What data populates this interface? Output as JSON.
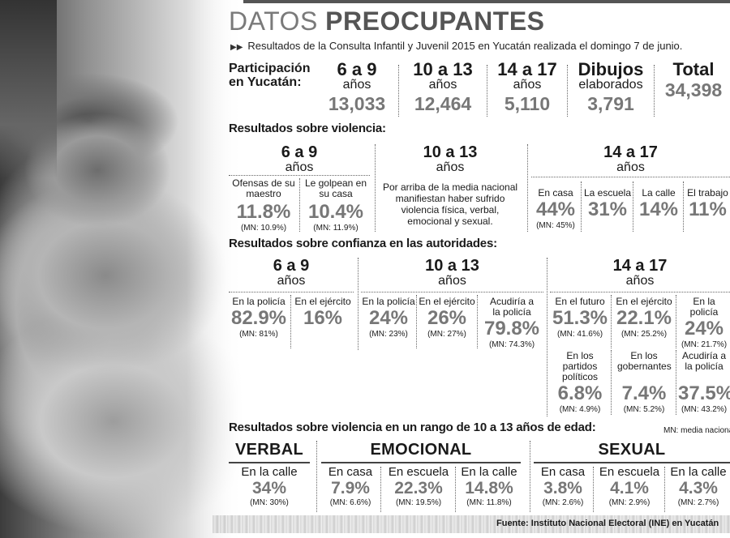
{
  "header": {
    "title_light": "DATOS",
    "title_bold": "PREOCUPANTES",
    "subtitle": "Resultados de la Consulta Infantil y Juvenil 2015 en Yucatán realizada el domingo 7 de junio."
  },
  "participation": {
    "label_line1": "Participación",
    "label_line2": "en Yucatán:",
    "cols": [
      {
        "title": "6 a 9",
        "sub": "años",
        "value": "13,033"
      },
      {
        "title": "10 a 13",
        "sub": "años",
        "value": "12,464"
      },
      {
        "title": "14 a 17",
        "sub": "años",
        "value": "5,110"
      },
      {
        "title": "Dibujos",
        "sub": "elaborados",
        "value": "3,791"
      },
      {
        "title": "Total",
        "sub": "",
        "value": "34,398"
      }
    ]
  },
  "violence": {
    "heading": "Resultados sobre violencia:",
    "g1": {
      "title": "6 a 9",
      "sub": "años",
      "items": [
        {
          "label": "Ofensas de su maestro",
          "value": "11.8%",
          "mn": "(MN: 10.9%)"
        },
        {
          "label": "Le golpean en su casa",
          "value": "10.4%",
          "mn": "(MN: 11.9%)"
        }
      ]
    },
    "g2": {
      "title": "10 a 13",
      "sub": "años",
      "text": "Por arriba de la media nacional manifiestan haber sufrido violencia física, verbal, emocional y sexual."
    },
    "g3": {
      "title": "14 a 17",
      "sub": "años",
      "items": [
        {
          "label": "En casa",
          "value": "44%",
          "mn": "(MN: 45%)"
        },
        {
          "label": "La escuela",
          "value": "31%",
          "mn": ""
        },
        {
          "label": "La calle",
          "value": "14%",
          "mn": ""
        },
        {
          "label": "El trabajo",
          "value": "11%",
          "mn": ""
        }
      ]
    }
  },
  "trust": {
    "heading": "Resultados sobre confianza en las autoridades:",
    "g1": {
      "title": "6 a 9",
      "sub": "años",
      "items": [
        {
          "label": "En la policía",
          "value": "82.9%",
          "mn": "(MN: 81%)"
        },
        {
          "label": "En el ejército",
          "value": "16%",
          "mn": ""
        }
      ]
    },
    "g2": {
      "title": "10 a 13",
      "sub": "años",
      "items": [
        {
          "label": "En la policía",
          "value": "24%",
          "mn": "(MN: 23%)"
        },
        {
          "label": "En el ejército",
          "value": "26%",
          "mn": "(MN: 27%)"
        },
        {
          "label": "Acudiría a la policía",
          "value": "79.8%",
          "mn": "(MN: 74.3%)"
        }
      ]
    },
    "g3": {
      "title": "14 a 17",
      "sub": "años",
      "items": [
        {
          "label": "En el futuro",
          "value": "51.3%",
          "mn": "(MN: 41.6%)"
        },
        {
          "label": "En el ejército",
          "value": "22.1%",
          "mn": "(MN: 25.2%)"
        },
        {
          "label": "En la policía",
          "value": "24%",
          "mn": "(MN: 21.7%)"
        },
        {
          "label": "En los partidos políticos",
          "value": "6.8%",
          "mn": "(MN: 4.9%)"
        },
        {
          "label": "En los gobernantes",
          "value": "7.4%",
          "mn": "(MN: 5.2%)"
        },
        {
          "label": "Acudiría a la policía",
          "value": "37.5%",
          "mn": "(MN: 43.2%)"
        }
      ]
    }
  },
  "range": {
    "heading": "Resultados sobre violencia en un rango de 10 a 13 años de edad:",
    "mn_note": "MN: media nacional",
    "verbal": {
      "title": "VERBAL",
      "items": [
        {
          "label": "En la calle",
          "value": "34%",
          "mn": "(MN: 30%)"
        }
      ]
    },
    "emocional": {
      "title": "EMOCIONAL",
      "items": [
        {
          "label": "En casa",
          "value": "7.9%",
          "mn": "(MN: 6.6%)"
        },
        {
          "label": "En escuela",
          "value": "22.3%",
          "mn": "(MN: 19.5%)"
        },
        {
          "label": "En la calle",
          "value": "14.8%",
          "mn": "(MN: 11.8%)"
        }
      ]
    },
    "sexual": {
      "title": "SEXUAL",
      "items": [
        {
          "label": "En casa",
          "value": "3.8%",
          "mn": "(MN: 2.6%)"
        },
        {
          "label": "En escuela",
          "value": "4.1%",
          "mn": "(MN: 2.9%)"
        },
        {
          "label": "En la calle",
          "value": "4.3%",
          "mn": "(MN: 2.7%)"
        }
      ]
    }
  },
  "source": "Fuente: Instituto Nacional Electoral (INE) en Yucatán"
}
